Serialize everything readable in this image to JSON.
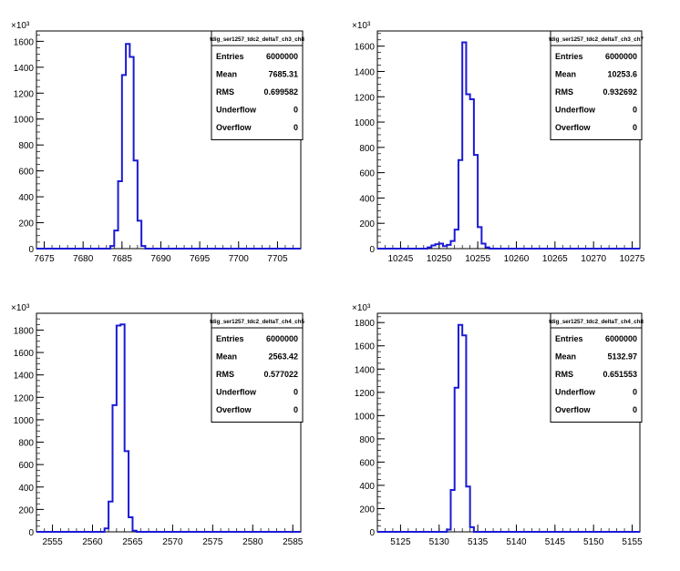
{
  "chart_data": [
    {
      "type": "histogram",
      "title": "tdig_ser1257_tdc2_deltaT_ch3_ch8",
      "y_multiplier": "×10³",
      "xlim": [
        7674,
        7708
      ],
      "ylim": [
        0,
        1680
      ],
      "x_ticks": [
        7675,
        7680,
        7685,
        7690,
        7695,
        7700,
        7705
      ],
      "y_ticks": [
        0,
        200,
        400,
        600,
        800,
        1000,
        1200,
        1400,
        1600
      ],
      "bins": [
        [
          7683.0,
          0
        ],
        [
          7683.5,
          20
        ],
        [
          7684.0,
          140
        ],
        [
          7684.5,
          520
        ],
        [
          7685.0,
          1340
        ],
        [
          7685.5,
          1580
        ],
        [
          7686.0,
          1480
        ],
        [
          7686.5,
          680
        ],
        [
          7687.0,
          215
        ],
        [
          7687.5,
          20
        ],
        [
          7688.0,
          0
        ]
      ],
      "stats": [
        {
          "label": "Entries",
          "value": "6000000"
        },
        {
          "label": "Mean",
          "value": "7685.31"
        },
        {
          "label": "RMS",
          "value": "0.699582"
        },
        {
          "label": "Underflow",
          "value": "0"
        },
        {
          "label": "Overflow",
          "value": "0"
        }
      ]
    },
    {
      "type": "histogram",
      "title": "tdig_ser1257_tdc2_deltaT_ch3_ch7",
      "y_multiplier": "×10³",
      "xlim": [
        10242,
        10276
      ],
      "ylim": [
        0,
        1720
      ],
      "x_ticks": [
        10245,
        10250,
        10255,
        10260,
        10265,
        10270,
        10275
      ],
      "y_ticks": [
        0,
        200,
        400,
        600,
        800,
        1000,
        1200,
        1400,
        1600
      ],
      "bins": [
        [
          10248.0,
          0
        ],
        [
          10248.5,
          10
        ],
        [
          10249.0,
          25
        ],
        [
          10249.5,
          35
        ],
        [
          10250.0,
          40
        ],
        [
          10250.5,
          20
        ],
        [
          10251.0,
          30
        ],
        [
          10251.5,
          60
        ],
        [
          10252.0,
          150
        ],
        [
          10252.5,
          700
        ],
        [
          10253.0,
          1630
        ],
        [
          10253.5,
          1220
        ],
        [
          10254.0,
          1180
        ],
        [
          10254.5,
          740
        ],
        [
          10255.0,
          170
        ],
        [
          10255.5,
          40
        ],
        [
          10256.0,
          10
        ],
        [
          10256.5,
          0
        ]
      ],
      "stats": [
        {
          "label": "Entries",
          "value": "6000000"
        },
        {
          "label": "Mean",
          "value": "10253.6"
        },
        {
          "label": "RMS",
          "value": "0.932692"
        },
        {
          "label": "Underflow",
          "value": "0"
        },
        {
          "label": "Overflow",
          "value": "0"
        }
      ]
    },
    {
      "type": "histogram",
      "title": "tdig_ser1257_tdc2_deltaT_ch4_ch5",
      "y_multiplier": "×10³",
      "xlim": [
        2553,
        2586
      ],
      "ylim": [
        0,
        1950
      ],
      "x_ticks": [
        2555,
        2560,
        2565,
        2570,
        2575,
        2580,
        2585
      ],
      "y_ticks": [
        0,
        200,
        400,
        600,
        800,
        1000,
        1200,
        1400,
        1600,
        1800
      ],
      "bins": [
        [
          2561.0,
          0
        ],
        [
          2561.5,
          30
        ],
        [
          2562.0,
          270
        ],
        [
          2562.5,
          1130
        ],
        [
          2563.0,
          1840
        ],
        [
          2563.5,
          1850
        ],
        [
          2564.0,
          720
        ],
        [
          2564.5,
          130
        ],
        [
          2565.0,
          10
        ],
        [
          2565.5,
          0
        ]
      ],
      "stats": [
        {
          "label": "Entries",
          "value": "6000000"
        },
        {
          "label": "Mean",
          "value": "2563.42"
        },
        {
          "label": "RMS",
          "value": "0.577022"
        },
        {
          "label": "Underflow",
          "value": "0"
        },
        {
          "label": "Overflow",
          "value": "0"
        }
      ]
    },
    {
      "type": "histogram",
      "title": "tdig_ser1257_tdc2_deltaT_ch4_ch8",
      "y_multiplier": "×10³",
      "xlim": [
        5122,
        5156
      ],
      "ylim": [
        0,
        1880
      ],
      "x_ticks": [
        5125,
        5130,
        5135,
        5140,
        5145,
        5150,
        5155
      ],
      "y_ticks": [
        0,
        200,
        400,
        600,
        800,
        1000,
        1200,
        1400,
        1600,
        1800
      ],
      "bins": [
        [
          5130.5,
          0
        ],
        [
          5131.0,
          20
        ],
        [
          5131.5,
          360
        ],
        [
          5132.0,
          1240
        ],
        [
          5132.5,
          1780
        ],
        [
          5133.0,
          1690
        ],
        [
          5133.5,
          390
        ],
        [
          5134.0,
          40
        ],
        [
          5134.5,
          0
        ]
      ],
      "stats": [
        {
          "label": "Entries",
          "value": "6000000"
        },
        {
          "label": "Mean",
          "value": "5132.97"
        },
        {
          "label": "RMS",
          "value": "0.651553"
        },
        {
          "label": "Underflow",
          "value": "0"
        },
        {
          "label": "Overflow",
          "value": "0"
        }
      ]
    }
  ],
  "colors": {
    "histogram_line": "#1a1ad6",
    "axis": "#000000",
    "background": "#ffffff"
  }
}
